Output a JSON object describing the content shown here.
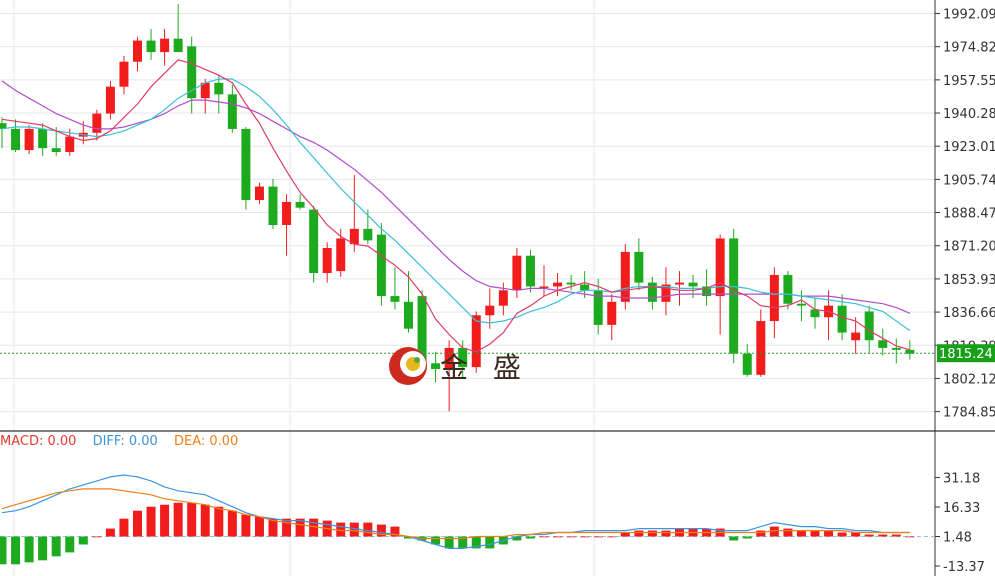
{
  "watermark": {
    "brand": "金 盛"
  },
  "colors": {
    "up": "#f11c1c",
    "down": "#1eaa1e",
    "ma_short": "#e03c68",
    "ma_mid": "#3cc0d8",
    "ma_long": "#b24ccc",
    "diff": "#3a96e0",
    "dea": "#f07f1a",
    "last_price_bg": "#19a019",
    "grid": "#e4e7ee"
  },
  "macd_legend": {
    "macd": "MACD: 0.00",
    "diff": "DIFF: 0.00",
    "dea": "DEA: 0.00"
  },
  "chart_data": [
    {
      "type": "candlestick",
      "y_ticks": [
        "1992.09",
        "1974.82",
        "1957.55",
        "1940.28",
        "1923.01",
        "1905.74",
        "1888.47",
        "1871.20",
        "1853.93",
        "1836.66",
        "1819.39",
        "1802.12",
        "1784.85"
      ],
      "ylim": [
        1781,
        1996
      ],
      "last_price": "1815.24",
      "candles": [
        [
          1935,
          1938,
          1922,
          1932
        ],
        [
          1932,
          1937,
          1920,
          1921
        ],
        [
          1921,
          1934,
          1919,
          1932
        ],
        [
          1932,
          1935,
          1918,
          1922
        ],
        [
          1922,
          1933,
          1918,
          1920
        ],
        [
          1920,
          1932,
          1918,
          1928
        ],
        [
          1928,
          1936,
          1924,
          1930
        ],
        [
          1930,
          1942,
          1926,
          1940
        ],
        [
          1940,
          1957,
          1937,
          1954
        ],
        [
          1954,
          1970,
          1950,
          1967
        ],
        [
          1967,
          1980,
          1962,
          1978
        ],
        [
          1978,
          1984,
          1968,
          1972
        ],
        [
          1972,
          1984,
          1965,
          1979
        ],
        [
          1979,
          1997,
          1973,
          1972
        ],
        [
          1975,
          1980,
          1940,
          1948
        ],
        [
          1948,
          1958,
          1940,
          1956
        ],
        [
          1956,
          1960,
          1940,
          1950
        ],
        [
          1950,
          1955,
          1930,
          1932
        ],
        [
          1932,
          1933,
          1890,
          1895
        ],
        [
          1895,
          1904,
          1893,
          1902
        ],
        [
          1902,
          1906,
          1880,
          1882
        ],
        [
          1882,
          1898,
          1866,
          1894
        ],
        [
          1894,
          1898,
          1890,
          1891
        ],
        [
          1890,
          1892,
          1852,
          1857
        ],
        [
          1857,
          1873,
          1852,
          1870
        ],
        [
          1858,
          1880,
          1855,
          1875
        ],
        [
          1872,
          1908,
          1868,
          1880
        ],
        [
          1880,
          1890,
          1872,
          1874
        ],
        [
          1877,
          1883,
          1840,
          1845
        ],
        [
          1845,
          1860,
          1838,
          1842
        ],
        [
          1842,
          1858,
          1826,
          1828
        ],
        [
          1845,
          1848,
          1805,
          1810
        ],
        [
          1810,
          1816,
          1800,
          1807
        ],
        [
          1807,
          1822,
          1785,
          1818
        ],
        [
          1818,
          1822,
          1802,
          1808
        ],
        [
          1808,
          1837,
          1805,
          1835
        ],
        [
          1835,
          1849,
          1828,
          1840
        ],
        [
          1840,
          1852,
          1835,
          1848
        ],
        [
          1848,
          1870,
          1844,
          1866
        ],
        [
          1866,
          1869,
          1847,
          1850
        ],
        [
          1850,
          1861,
          1845,
          1850
        ],
        [
          1850,
          1857,
          1845,
          1852
        ],
        [
          1852,
          1856,
          1848,
          1851
        ],
        [
          1851,
          1858,
          1844,
          1848
        ],
        [
          1848,
          1854,
          1825,
          1830
        ],
        [
          1830,
          1846,
          1822,
          1842
        ],
        [
          1842,
          1872,
          1838,
          1868
        ],
        [
          1868,
          1875,
          1848,
          1852
        ],
        [
          1852,
          1855,
          1838,
          1842
        ],
        [
          1842,
          1860,
          1835,
          1851
        ],
        [
          1851,
          1858,
          1840,
          1852
        ],
        [
          1852,
          1856,
          1844,
          1850
        ],
        [
          1850,
          1859,
          1840,
          1845
        ],
        [
          1845,
          1877,
          1825,
          1875
        ],
        [
          1875,
          1880,
          1810,
          1815
        ],
        [
          1815,
          1820,
          1803,
          1804
        ],
        [
          1804,
          1838,
          1803,
          1832
        ],
        [
          1832,
          1860,
          1823,
          1856
        ],
        [
          1856,
          1858,
          1838,
          1841
        ],
        [
          1841,
          1848,
          1832,
          1840
        ],
        [
          1838,
          1844,
          1828,
          1834
        ],
        [
          1834,
          1848,
          1822,
          1840
        ],
        [
          1840,
          1846,
          1822,
          1826
        ],
        [
          1822,
          1834,
          1815,
          1826
        ],
        [
          1837,
          1840,
          1815,
          1822
        ],
        [
          1822,
          1828,
          1814,
          1818
        ],
        [
          1818,
          1823,
          1810,
          1817
        ],
        [
          1817,
          1822,
          1812,
          1815
        ]
      ],
      "ma_short": [
        1937,
        1936,
        1935,
        1934,
        1931,
        1928,
        1926,
        1927,
        1931,
        1938,
        1945,
        1954,
        1961,
        1968,
        1966,
        1963,
        1960,
        1956,
        1945,
        1935,
        1922,
        1910,
        1899,
        1891,
        1882,
        1876,
        1872,
        1871,
        1866,
        1861,
        1855,
        1846,
        1833,
        1825,
        1818,
        1816,
        1820,
        1826,
        1836,
        1840,
        1845,
        1848,
        1850,
        1852,
        1850,
        1847,
        1848,
        1849,
        1850,
        1849,
        1848,
        1848,
        1849,
        1852,
        1848,
        1845,
        1840,
        1839,
        1840,
        1843,
        1838,
        1837,
        1834,
        1832,
        1827,
        1823,
        1819,
        1817
      ],
      "ma_mid": [
        1932,
        1933,
        1933,
        1932,
        1931,
        1930,
        1929,
        1928,
        1929,
        1931,
        1934,
        1937,
        1942,
        1948,
        1952,
        1956,
        1958,
        1958,
        1954,
        1949,
        1942,
        1934,
        1925,
        1917,
        1909,
        1901,
        1894,
        1887,
        1880,
        1874,
        1867,
        1860,
        1853,
        1846,
        1839,
        1832,
        1831,
        1832,
        1834,
        1837,
        1839,
        1842,
        1846,
        1848,
        1848,
        1847,
        1849,
        1850,
        1850,
        1850,
        1849,
        1849,
        1849,
        1850,
        1850,
        1849,
        1847,
        1846,
        1846,
        1845,
        1844,
        1843,
        1842,
        1841,
        1839,
        1837,
        1832,
        1827
      ],
      "ma_long": [
        1957,
        1952,
        1948,
        1944,
        1940,
        1937,
        1934,
        1932,
        1932,
        1933,
        1935,
        1937,
        1940,
        1944,
        1947,
        1947,
        1946,
        1945,
        1943,
        1940,
        1936,
        1932,
        1928,
        1925,
        1921,
        1916,
        1911,
        1905,
        1899,
        1892,
        1885,
        1878,
        1871,
        1864,
        1858,
        1853,
        1850,
        1849,
        1848,
        1849,
        1849,
        1848,
        1847,
        1846,
        1845,
        1845,
        1844,
        1844,
        1844,
        1845,
        1846,
        1846,
        1846,
        1846,
        1846,
        1846,
        1846,
        1846,
        1846,
        1845,
        1845,
        1845,
        1844,
        1843,
        1842,
        1841,
        1839,
        1836
      ]
    },
    {
      "type": "macd",
      "y_ticks": [
        "31.18",
        "16.33",
        "1.48",
        "-13.37"
      ],
      "ylim": [
        -13.37,
        38
      ],
      "histogram": [
        -14,
        -14,
        -13,
        -12,
        -10,
        -8,
        -4,
        0,
        4,
        9,
        13,
        15,
        16,
        17,
        17,
        16,
        15,
        13,
        11,
        10,
        9,
        9,
        9,
        9,
        8,
        7,
        7,
        7,
        6,
        5,
        -1,
        -2,
        -4,
        -6,
        -6,
        -6,
        -6,
        -4,
        -2,
        -1,
        0,
        0,
        0,
        0,
        0,
        0,
        2,
        3,
        3,
        3,
        4,
        4,
        4,
        4,
        -2,
        -1,
        3,
        5,
        4,
        3,
        3,
        3,
        2,
        2,
        1,
        1,
        1,
        0
      ],
      "diff": [
        12,
        13,
        15,
        18,
        21,
        24,
        26,
        28,
        30,
        31,
        30,
        28,
        25,
        23,
        22,
        21,
        18,
        15,
        12,
        10,
        9,
        8,
        8,
        7,
        6,
        5,
        4,
        3,
        2,
        1,
        0,
        -2,
        -4,
        -6,
        -6,
        -5,
        -4,
        -2,
        0,
        1,
        1,
        2,
        2,
        3,
        3,
        3,
        3,
        4,
        4,
        4,
        4,
        4,
        4,
        3,
        3,
        3,
        5,
        7,
        6,
        5,
        5,
        4,
        4,
        3,
        3,
        2,
        2,
        2
      ],
      "dea": [
        14,
        16,
        18,
        20,
        22,
        23,
        24,
        24,
        24,
        23,
        22,
        21,
        19,
        18,
        17,
        16,
        14,
        13,
        11,
        10,
        8,
        7,
        6,
        5,
        4,
        3,
        3,
        2,
        1,
        1,
        0,
        -1,
        -1,
        -1,
        -1,
        0,
        0,
        0,
        1,
        1,
        2,
        2,
        2,
        2,
        2,
        2,
        2,
        2,
        2,
        2,
        2,
        2,
        2,
        2,
        2,
        2,
        2,
        3,
        3,
        3,
        3,
        3,
        3,
        2,
        2,
        2,
        2,
        2
      ],
      "legend": [
        "MACD: 0.00",
        "DIFF: 0.00",
        "DEA: 0.00"
      ]
    }
  ]
}
